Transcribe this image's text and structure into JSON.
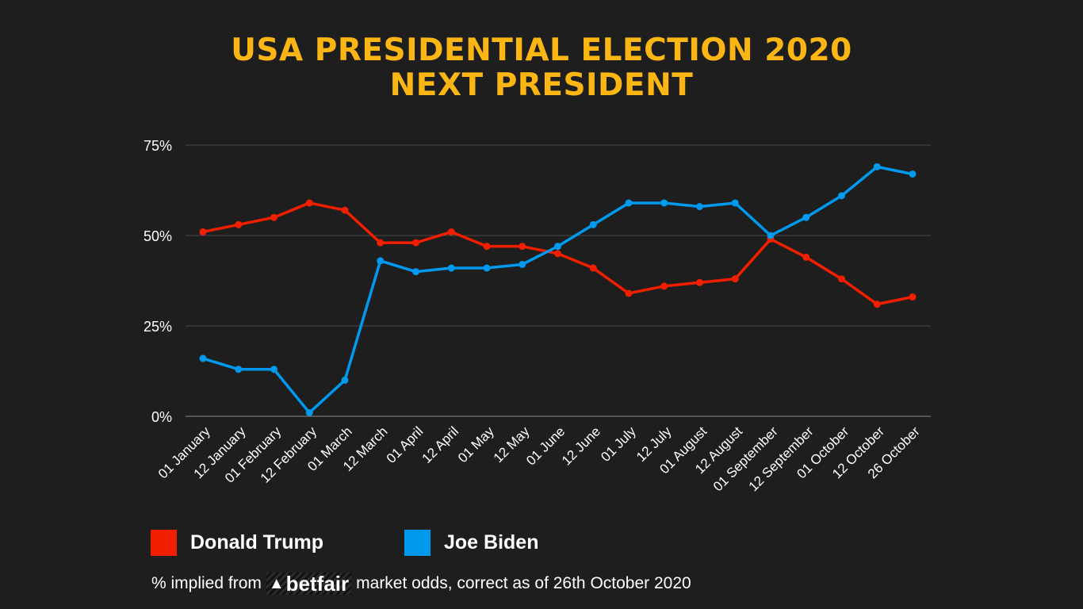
{
  "title_line1": "USA PRESIDENTIAL ELECTION 2020",
  "title_line2": "NEXT PRESIDENT",
  "chart_data": {
    "type": "line",
    "title": "USA PRESIDENTIAL ELECTION 2020 NEXT PRESIDENT",
    "categories": [
      "01 January",
      "12 January",
      "01 February",
      "12 February",
      "01 March",
      "12 March",
      "01 April",
      "12 April",
      "01 May",
      "12 May",
      "01 June",
      "12 June",
      "01 July",
      "12 July",
      "01 August",
      "12 August",
      "01 September",
      "12 September",
      "01 October",
      "12 October",
      "26 October"
    ],
    "yticks": [
      "0%",
      "25%",
      "50%",
      "75%"
    ],
    "ylim": [
      0,
      75
    ],
    "grid": true,
    "legend_placement": "bottom",
    "series": [
      {
        "name": "Donald Trump",
        "color": "#f21e00",
        "values": [
          51,
          53,
          55,
          59,
          57,
          48,
          48,
          51,
          47,
          47,
          45,
          41,
          34,
          36,
          37,
          38,
          49,
          44,
          38,
          31,
          33
        ]
      },
      {
        "name": "Joe Biden",
        "color": "#0099ee",
        "values": [
          16,
          13,
          13,
          1,
          10,
          43,
          40,
          41,
          41,
          42,
          47,
          53,
          59,
          59,
          58,
          59,
          50,
          55,
          61,
          69,
          67
        ]
      }
    ]
  },
  "footer": {
    "before": "% implied from",
    "logo": "betfair",
    "after": "market odds, correct as of 26th October 2020"
  }
}
